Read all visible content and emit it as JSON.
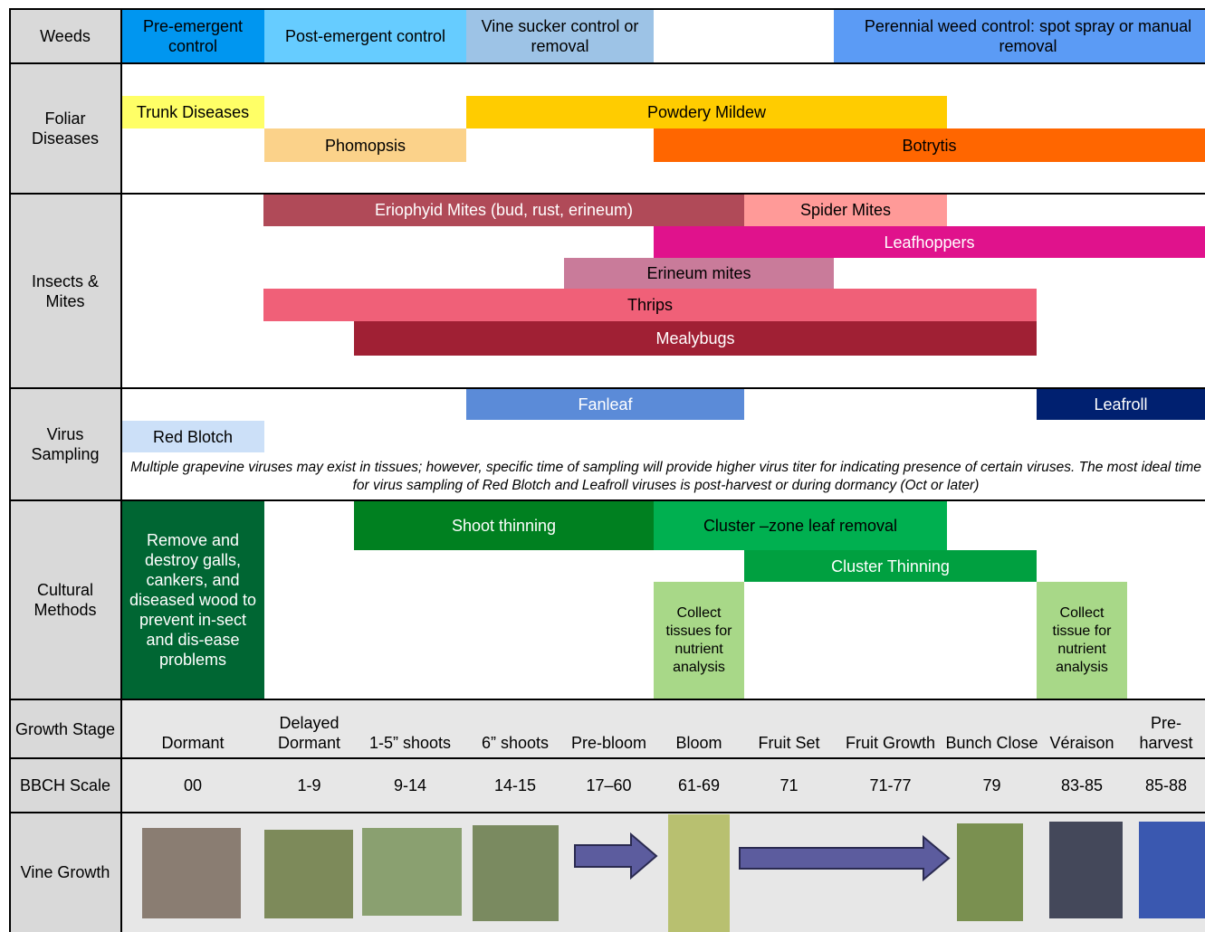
{
  "rows": [
    {
      "label": "Weeds",
      "bars": [
        "Pre-emergent control",
        "Post-emergent control",
        "Vine sucker control or removal",
        "Perennial weed control: spot spray or manual removal"
      ]
    },
    {
      "label": "Foliar Diseases",
      "bars": [
        "Trunk Diseases",
        "Powdery Mildew",
        "Phomopsis",
        "Botrytis"
      ]
    },
    {
      "label": "Insects & Mites",
      "bars": [
        "Eriophyid Mites (bud, rust, erineum)",
        "Spider Mites",
        "Leafhoppers",
        "Erineum mites",
        "Thrips",
        "Mealybugs"
      ]
    },
    {
      "label": "Virus Sampling",
      "bars": [
        "Fanleaf",
        "Leafroll",
        "Red Blotch"
      ],
      "note": "Multiple grapevine viruses may exist in tissues; however, specific time of sampling will provide higher virus titer for indicating presence of certain viruses. The most ideal time for virus sampling of Red Blotch and Leafroll viruses is post-harvest or during dormancy (Oct or later)"
    },
    {
      "label": "Cultural Methods",
      "bars": [
        "Remove and destroy galls, cankers, and diseased wood to prevent in-sect and dis-ease problems",
        "Shoot thinning",
        "Cluster –zone leaf removal",
        "Cluster Thinning",
        "Collect tissues for nutrient analysis",
        "Collect tissue for nutrient analysis"
      ]
    }
  ],
  "growth_stage_label": "Growth Stage",
  "bbch_label": "BBCH Scale",
  "vine_growth_label": "Vine Growth",
  "stages": [
    {
      "name": "Dormant",
      "bbch": "00"
    },
    {
      "name": "Delayed Dormant",
      "bbch": "1-9"
    },
    {
      "name": "1-5” shoots",
      "bbch": "9-14"
    },
    {
      "name": "6” shoots",
      "bbch": "14-15"
    },
    {
      "name": "Pre-bloom",
      "bbch": "17–60"
    },
    {
      "name": "Bloom",
      "bbch": "61-69"
    },
    {
      "name": "Fruit Set",
      "bbch": "71"
    },
    {
      "name": "Fruit Growth",
      "bbch": "71-77"
    },
    {
      "name": "Bunch Close",
      "bbch": "79"
    },
    {
      "name": "Véraison",
      "bbch": "83-85"
    },
    {
      "name": "Pre-harvest",
      "bbch": "85-88"
    }
  ]
}
